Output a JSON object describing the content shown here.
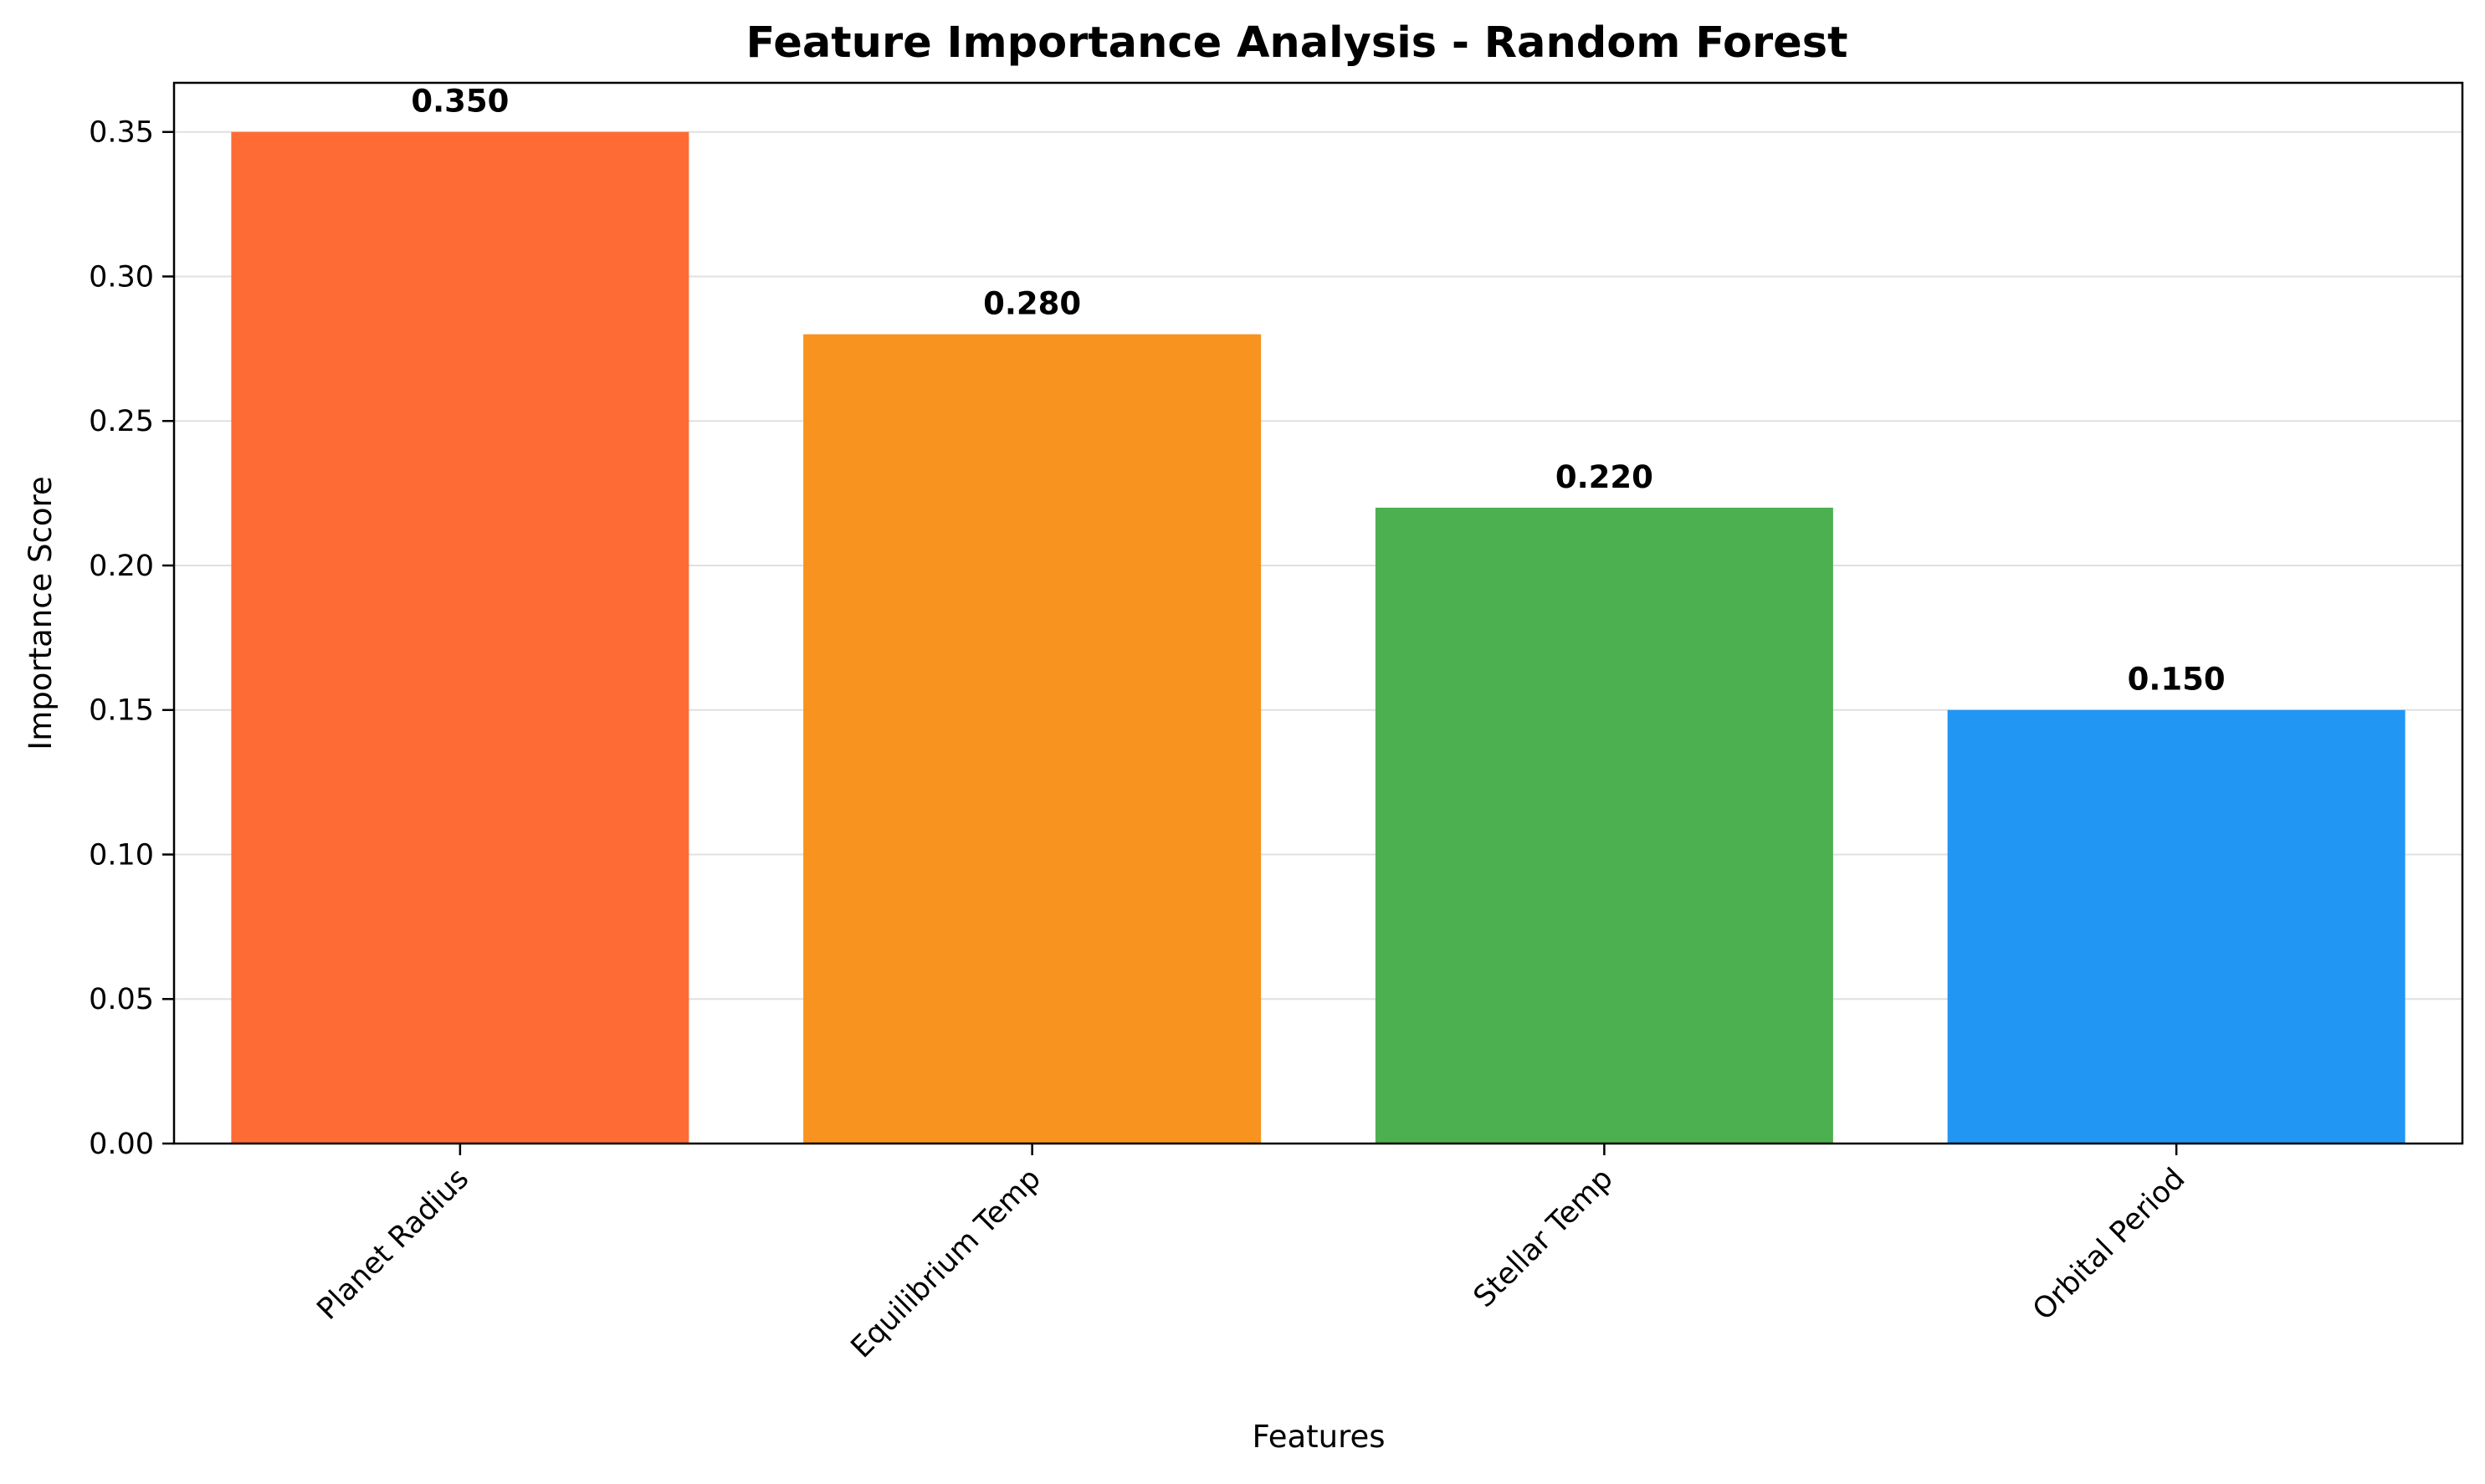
{
  "chart_data": {
    "type": "bar",
    "title": "Feature Importance Analysis - Random Forest",
    "xlabel": "Features",
    "ylabel": "Importance Score",
    "categories": [
      "Planet Radius",
      "Equilibrium Temp",
      "Stellar Temp",
      "Orbital Period"
    ],
    "values": [
      0.35,
      0.28,
      0.22,
      0.15
    ],
    "value_labels": [
      "0.350",
      "0.280",
      "0.220",
      "0.150"
    ],
    "colors": [
      "#FF6B35",
      "#F7931E",
      "#4CAF50",
      "#2196F3"
    ],
    "ylim": [
      0,
      0.367
    ],
    "yticks": [
      0.0,
      0.05,
      0.1,
      0.15,
      0.2,
      0.25,
      0.3,
      0.35
    ],
    "ytick_labels": [
      "0.00",
      "0.05",
      "0.10",
      "0.15",
      "0.20",
      "0.25",
      "0.30",
      "0.35"
    ],
    "grid": "y-axis",
    "legend": "none"
  }
}
